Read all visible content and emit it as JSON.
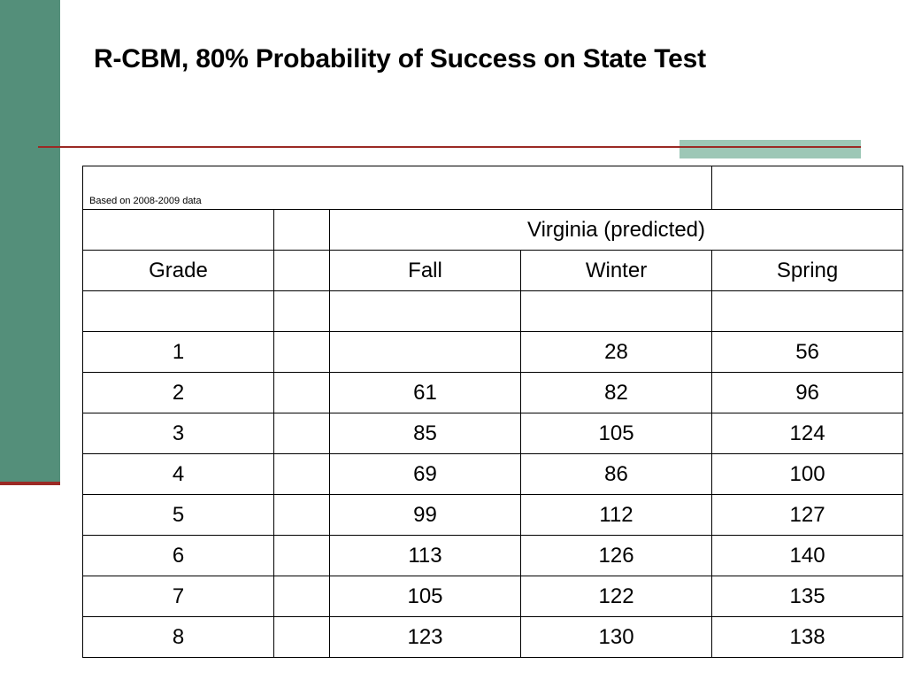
{
  "slide": {
    "title": "R-CBM, 80% Probability of Success on State Test"
  },
  "table": {
    "note": "Based on 2008-2009 data",
    "group_header": "Virginia (predicted)",
    "columns": {
      "grade": "Grade",
      "blank": "",
      "fall": "Fall",
      "winter": "Winter",
      "spring": "Spring"
    },
    "rows": [
      {
        "grade": "",
        "fall": "",
        "winter": "",
        "spring": ""
      },
      {
        "grade": "1",
        "fall": "",
        "winter": "28",
        "spring": "56"
      },
      {
        "grade": "2",
        "fall": "61",
        "winter": "82",
        "spring": "96"
      },
      {
        "grade": "3",
        "fall": "85",
        "winter": "105",
        "spring": "124"
      },
      {
        "grade": "4",
        "fall": "69",
        "winter": "86",
        "spring": "100"
      },
      {
        "grade": "5",
        "fall": "99",
        "winter": "112",
        "spring": "127"
      },
      {
        "grade": "6",
        "fall": "113",
        "winter": "126",
        "spring": "140"
      },
      {
        "grade": "7",
        "fall": "105",
        "winter": "122",
        "spring": "135"
      },
      {
        "grade": "8",
        "fall": "123",
        "winter": "130",
        "spring": "138"
      }
    ]
  },
  "colors": {
    "sidebar": "#548f7a",
    "accent_green": "#9dc7b6",
    "rule_red": "#9b2a25"
  }
}
